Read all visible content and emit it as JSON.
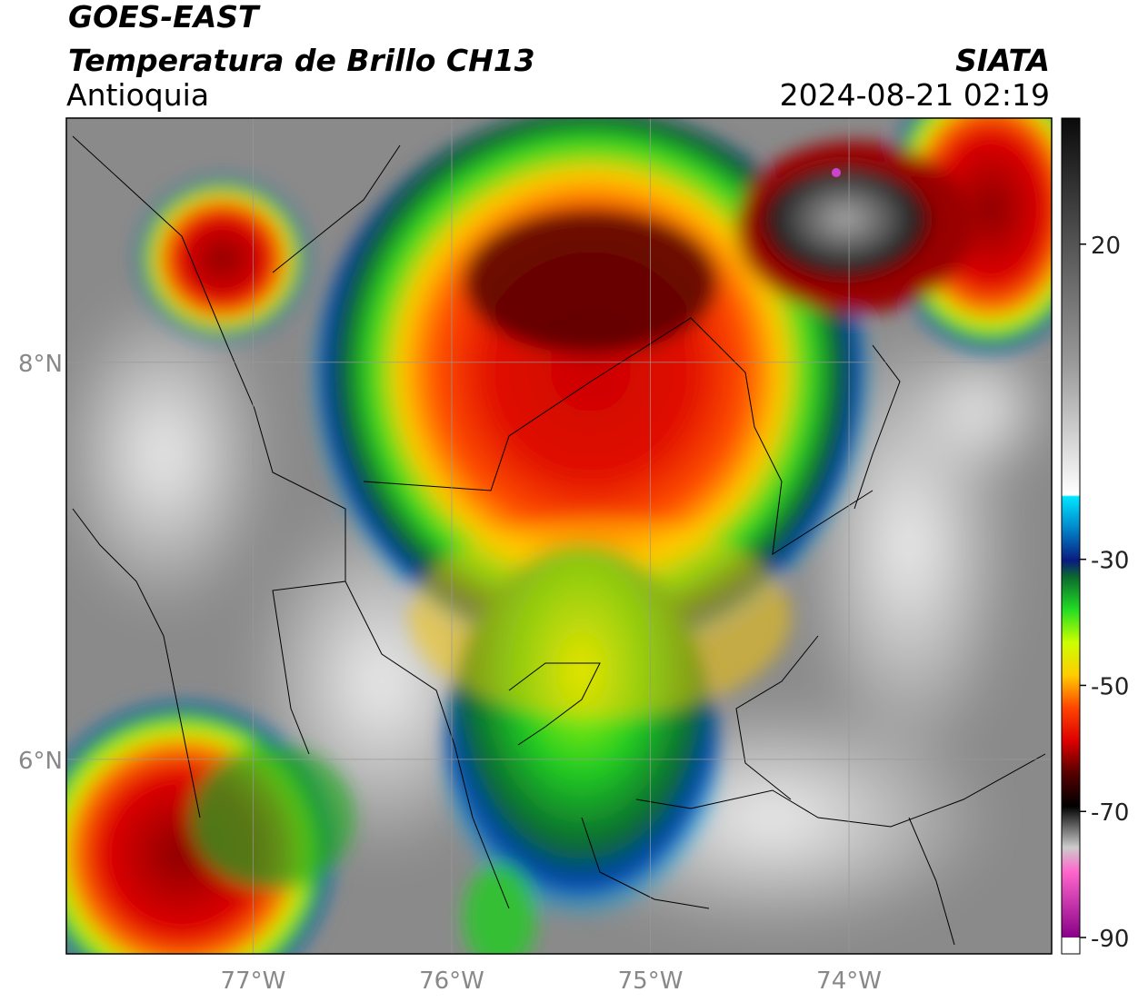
{
  "chart_data": {
    "type": "map",
    "title": "GOES-EAST",
    "subtitle": "Temperatura de Brillo CH13",
    "region": "Antioquia",
    "source": "SIATA",
    "datetime": "2024-08-21 02:19",
    "xlim": [
      -77.94,
      -72.98
    ],
    "ylim": [
      5.02,
      9.23
    ],
    "xticks": [
      {
        "value": -77,
        "label": "77°W"
      },
      {
        "value": -76,
        "label": "76°W"
      },
      {
        "value": -75,
        "label": "75°W"
      },
      {
        "value": -74,
        "label": "74°W"
      }
    ],
    "yticks": [
      {
        "value": 6,
        "label": "6°N"
      },
      {
        "value": 8,
        "label": "8°N"
      }
    ],
    "grid": true,
    "colorbar": {
      "lim": [
        -90,
        40
      ],
      "ticks": [
        -90,
        -70,
        -50,
        -30,
        20
      ]
    }
  }
}
